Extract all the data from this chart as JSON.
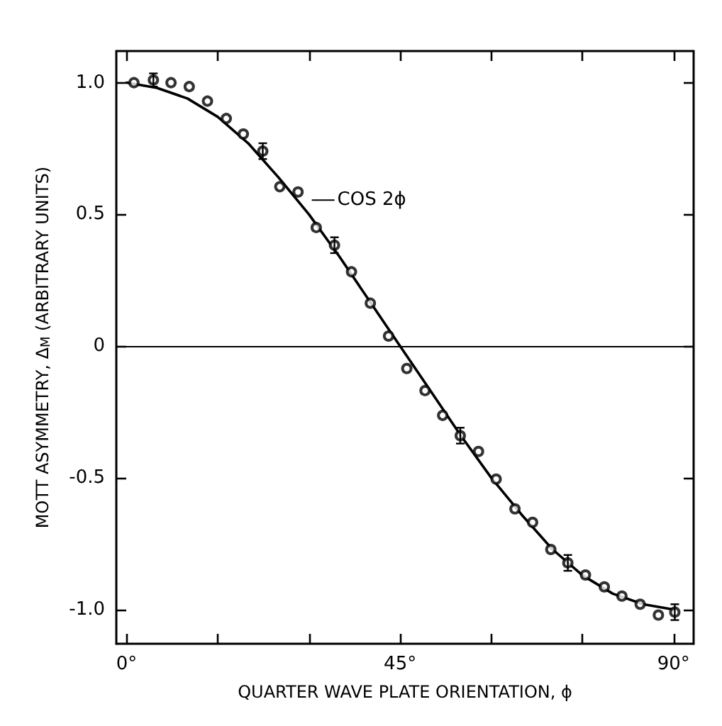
{
  "chart_data": {
    "type": "scatter",
    "xlabel": "QUARTER WAVE PLATE ORIENTATION, ϕ",
    "ylabel": "MOTT ASYMMETRY, Δ$_{M}$ (ARBITRARY UNITS)",
    "xlim": [
      -1.7,
      93.3
    ],
    "ylim": [
      -1.13,
      1.12
    ],
    "xticks": [
      {
        "value": 0,
        "label": "0°"
      },
      {
        "value": 15,
        "label": null
      },
      {
        "value": 30,
        "label": null
      },
      {
        "value": 45,
        "label": "45°"
      },
      {
        "value": 60,
        "label": null
      },
      {
        "value": 75,
        "label": null
      },
      {
        "value": 90,
        "label": "90°"
      }
    ],
    "yticks": [
      {
        "value": -1,
        "label": "-1.0"
      },
      {
        "value": -0.5,
        "label": "-0.5"
      },
      {
        "value": 0,
        "label": "0"
      },
      {
        "value": 0.5,
        "label": "0.5"
      },
      {
        "value": 1,
        "label": "1.0"
      }
    ],
    "marker": "circle",
    "ref_lines": [
      {
        "axis": "y",
        "value": 0,
        "color": "#000000"
      }
    ],
    "annotations": [
      {
        "text": "COS 2ϕ",
        "x": 30,
        "y": 0.5
      }
    ],
    "series": [
      {
        "color": "#000000",
        "x": [
          1.2,
          4.4,
          7.3,
          10.3,
          13.3,
          16.4,
          19.2,
          22.4,
          25.2,
          28.2,
          31.2,
          34.2,
          37.0,
          40.1,
          43.1,
          46.1,
          49.1,
          52.0,
          54.9,
          57.9,
          60.8,
          63.9,
          66.8,
          69.8,
          72.6,
          75.5,
          78.6,
          81.5,
          84.5,
          87.5,
          90.2
        ],
        "values": [
          1.0,
          1.01,
          1.0,
          0.985,
          0.93,
          0.864,
          0.805,
          0.74,
          0.605,
          0.585,
          0.45,
          0.383,
          0.282,
          0.163,
          0.038,
          -0.085,
          -0.169,
          -0.263,
          -0.34,
          -0.4,
          -0.505,
          -0.618,
          -0.669,
          -0.772,
          -0.823,
          -0.869,
          -0.914,
          -0.949,
          -0.98,
          -1.021,
          -1.01
        ],
        "errors": [
          null,
          0.025,
          null,
          null,
          null,
          null,
          null,
          0.03,
          null,
          null,
          null,
          0.03,
          null,
          null,
          null,
          null,
          null,
          null,
          0.03,
          null,
          null,
          null,
          null,
          null,
          0.03,
          null,
          null,
          null,
          null,
          null,
          0.03
        ]
      },
      {
        "type": "line",
        "color": "#000000",
        "marker": "none",
        "x": [
          0,
          5,
          10,
          15,
          20,
          25,
          30,
          35,
          40,
          45,
          50,
          55,
          60,
          65,
          70,
          75,
          80,
          85,
          90
        ],
        "values": [
          1.0,
          0.98,
          0.94,
          0.87,
          0.77,
          0.64,
          0.5,
          0.34,
          0.17,
          0.0,
          -0.17,
          -0.34,
          -0.5,
          -0.64,
          -0.77,
          -0.87,
          -0.94,
          -0.98,
          -1.0
        ]
      }
    ]
  }
}
